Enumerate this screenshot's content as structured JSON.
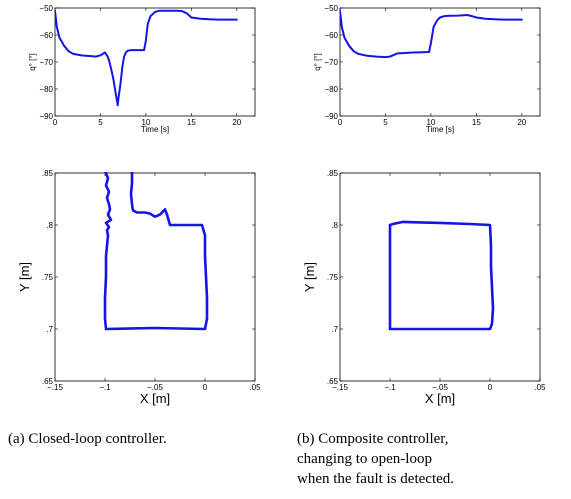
{
  "chart_data": [
    {
      "type": "line",
      "panel": "a-top",
      "xlabel": "Time [s]",
      "ylabel": "q° [°]",
      "xlim": [
        0,
        22
      ],
      "ylim": [
        -90,
        -50
      ],
      "xticks": [
        0,
        5,
        10,
        15,
        20
      ],
      "yticks": [
        -90,
        -80,
        -70,
        -60,
        -50
      ],
      "grid": false,
      "series": [
        {
          "x": [
            0,
            0.2,
            0.5,
            1,
            1.5,
            2,
            3,
            4,
            4.5,
            5,
            5.5,
            5.8,
            6.0,
            6.2,
            6.4,
            6.6,
            6.8,
            6.9,
            7.0,
            7.2,
            7.4,
            7.6,
            7.8,
            8.0,
            8.2,
            8.4,
            9.0,
            9.8,
            10.0,
            10.2,
            10.5,
            11,
            11.5,
            12,
            13,
            13.5,
            14,
            14.5,
            15,
            16,
            17,
            18,
            19,
            20
          ],
          "y": [
            -51,
            -57,
            -61,
            -64,
            -66,
            -67,
            -67.6,
            -67.8,
            -68,
            -67.5,
            -66.5,
            -68,
            -70,
            -73,
            -76,
            -80,
            -84,
            -86,
            -83,
            -78,
            -72,
            -68,
            -66.5,
            -65.8,
            -65.7,
            -65.6,
            -65.6,
            -65.6,
            -62,
            -56,
            -53,
            -51.5,
            -51,
            -51,
            -51,
            -51,
            -51.2,
            -52,
            -53.5,
            -54,
            -54.2,
            -54.3,
            -54.3,
            -54.3
          ]
        }
      ]
    },
    {
      "type": "line",
      "panel": "b-top",
      "xlabel": "Time [s]",
      "ylabel": "q° [°]",
      "xlim": [
        0,
        22
      ],
      "ylim": [
        -90,
        -50
      ],
      "xticks": [
        0,
        5,
        10,
        15,
        20
      ],
      "yticks": [
        -90,
        -80,
        -70,
        -60,
        -50
      ],
      "grid": false,
      "series": [
        {
          "x": [
            0,
            0.2,
            0.5,
            1,
            1.5,
            2,
            3,
            4,
            5,
            5.5,
            6,
            6.3,
            7,
            8,
            9,
            9.8,
            10.0,
            10.3,
            10.7,
            11,
            11.5,
            12,
            13,
            14,
            14.5,
            15,
            16,
            17,
            18,
            19,
            20
          ],
          "y": [
            -51,
            -57,
            -61,
            -64,
            -66,
            -67,
            -67.7,
            -68,
            -68.2,
            -68,
            -67.3,
            -66.8,
            -66.7,
            -66.5,
            -66.4,
            -66.3,
            -63,
            -57,
            -54.5,
            -53.5,
            -53,
            -52.9,
            -52.8,
            -52.6,
            -53,
            -53.5,
            -54,
            -54.2,
            -54.3,
            -54.3,
            -54.3
          ]
        }
      ]
    },
    {
      "type": "line",
      "panel": "a-bottom",
      "xlabel": "X [m]",
      "ylabel": "Y [m]",
      "xlim": [
        -0.15,
        0.05
      ],
      "ylim": [
        0.65,
        0.85
      ],
      "xticks": [
        -0.15,
        -0.1,
        -0.05,
        0,
        0.05
      ],
      "yticks": [
        0.65,
        0.7,
        0.75,
        0.8,
        0.85
      ],
      "grid": false,
      "series": [
        {
          "x": [
            -0.0995,
            -0.097,
            -0.099,
            -0.096,
            -0.098,
            -0.096,
            -0.095,
            -0.097,
            -0.094,
            -0.099,
            -0.096,
            -0.098,
            -0.097,
            -0.098,
            -0.099,
            -0.099,
            -0.1,
            -0.1,
            -0.099,
            -0.05,
            0.0,
            0.002,
            0.002,
            0.001,
            0.0,
            0.0,
            -0.003,
            -0.01,
            -0.02,
            -0.03,
            -0.035,
            -0.038,
            -0.04,
            -0.045,
            -0.05,
            -0.055,
            -0.06,
            -0.068,
            -0.072,
            -0.073,
            -0.074,
            -0.073,
            -0.073,
            -0.073
          ],
          "y": [
            0.851,
            0.845,
            0.838,
            0.832,
            0.826,
            0.82,
            0.815,
            0.81,
            0.805,
            0.802,
            0.798,
            0.795,
            0.79,
            0.78,
            0.77,
            0.75,
            0.73,
            0.71,
            0.7,
            0.701,
            0.7,
            0.71,
            0.73,
            0.75,
            0.77,
            0.79,
            0.8,
            0.8,
            0.8,
            0.8,
            0.8,
            0.81,
            0.815,
            0.81,
            0.808,
            0.811,
            0.812,
            0.812,
            0.814,
            0.82,
            0.83,
            0.84,
            0.85,
            0.851
          ]
        }
      ]
    },
    {
      "type": "line",
      "panel": "b-bottom",
      "xlabel": "X [m]",
      "ylabel": "Y [m]",
      "xlim": [
        -0.15,
        0.05
      ],
      "ylim": [
        0.65,
        0.85
      ],
      "xticks": [
        -0.15,
        -0.1,
        -0.05,
        0,
        0.05
      ],
      "yticks": [
        0.65,
        0.7,
        0.75,
        0.8,
        0.85
      ],
      "grid": false,
      "series": [
        {
          "x": [
            -0.1,
            -0.097,
            -0.087,
            -0.07,
            -0.05,
            -0.02,
            0.0,
            0.001,
            0.001,
            0.002,
            0.003,
            0.002,
            0.0,
            -0.05,
            -0.1,
            -0.1,
            -0.1,
            -0.1,
            -0.1
          ],
          "y": [
            0.8,
            0.801,
            0.803,
            0.8025,
            0.802,
            0.801,
            0.8,
            0.78,
            0.76,
            0.74,
            0.72,
            0.705,
            0.7,
            0.7,
            0.7,
            0.72,
            0.75,
            0.78,
            0.8
          ]
        }
      ]
    }
  ],
  "captions": {
    "a": "(a) Closed-loop controller.",
    "b_line1": "(b)   Composite   controller,",
    "b_line2": "changing     to     open-loop",
    "b_line3": "when the fault is detected."
  },
  "colors": {
    "line": "#1414e6",
    "axis": "#000000"
  }
}
